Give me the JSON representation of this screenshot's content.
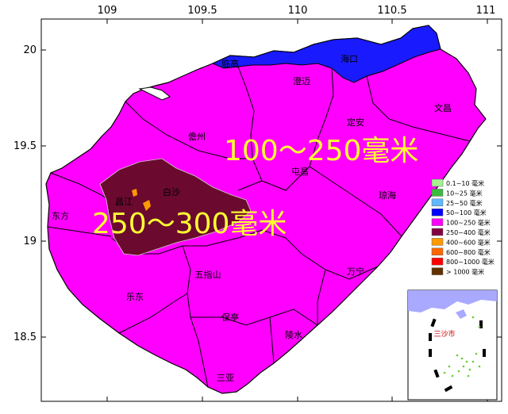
{
  "axes": {
    "lon_ticks": [
      "109",
      "109.5",
      "110",
      "110.5",
      "111"
    ],
    "lat_ticks": [
      "20",
      "19.5",
      "19",
      "18.5"
    ]
  },
  "colors": {
    "sea_frame": "#ffffff",
    "band_100_250": "#ff00ff",
    "band_250_400": "#6b0a2e",
    "band_50_100": "#1a1aff",
    "band_400_600": "#ff9900",
    "outline": "#000000",
    "annotation": "#ffff33"
  },
  "cities": [
    {
      "id": "lingao",
      "name": "临高"
    },
    {
      "id": "haikou",
      "name": "海口"
    },
    {
      "id": "chengmai",
      "name": "澄迈"
    },
    {
      "id": "wenchang",
      "name": "文昌"
    },
    {
      "id": "dingan",
      "name": "定安"
    },
    {
      "id": "danzhou",
      "name": "儋州"
    },
    {
      "id": "tunchang",
      "name": "屯昌"
    },
    {
      "id": "qionghai",
      "name": "琼海"
    },
    {
      "id": "baisha",
      "name": "白沙"
    },
    {
      "id": "changjiang",
      "name": "昌江"
    },
    {
      "id": "dongfang",
      "name": "东方"
    },
    {
      "id": "wanning",
      "name": "万宁"
    },
    {
      "id": "wuzhishan",
      "name": "五指山"
    },
    {
      "id": "ledong",
      "name": "乐东"
    },
    {
      "id": "baoting",
      "name": "保亭"
    },
    {
      "id": "lingshui",
      "name": "陵水"
    },
    {
      "id": "sanya",
      "name": "三亚"
    }
  ],
  "annotations": {
    "north_band": "100～250毫米",
    "west_band": "250～300毫米"
  },
  "legend": [
    {
      "label": "0.1~10 毫米",
      "color": "#a6f28f"
    },
    {
      "label": "10~25 毫米",
      "color": "#3dba3d"
    },
    {
      "label": "25~50 毫米",
      "color": "#61b8ff"
    },
    {
      "label": "50~100 毫米",
      "color": "#0000ff"
    },
    {
      "label": "100~250 毫米",
      "color": "#fa00fa"
    },
    {
      "label": "250~400 毫米",
      "color": "#800040"
    },
    {
      "label": "400~600 毫米",
      "color": "#ff9900"
    },
    {
      "label": "600~800 毫米",
      "color": "#ff6600"
    },
    {
      "label": "800~1000 毫米",
      "color": "#ff0000"
    },
    {
      "label": "> 1000 毫米",
      "color": "#603000"
    }
  ],
  "inset": {
    "label": "三沙市"
  }
}
